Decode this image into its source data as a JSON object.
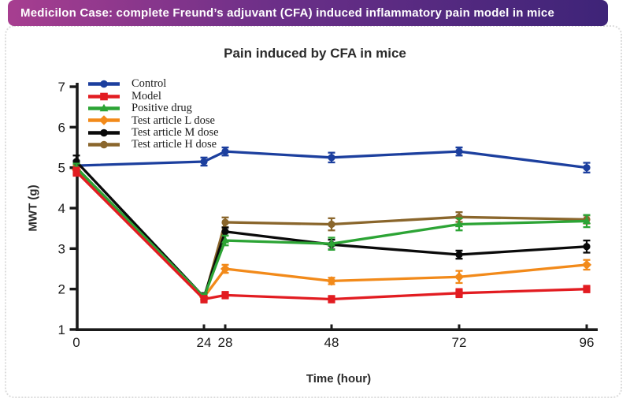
{
  "banner": {
    "text": "Medicilon Case: complete Freund’s adjuvant (CFA) induced inflammatory pain model in mice",
    "gradient_left": "#a73e90",
    "gradient_right": "#3e2478",
    "text_color": "#ffffff"
  },
  "chart_data": {
    "type": "line",
    "title": "Pain induced by CFA in mice",
    "xlabel": "Time (hour)",
    "ylabel": "MWT (g)",
    "x": [
      0,
      24,
      28,
      48,
      72,
      96
    ],
    "x_ticks": [
      "0",
      "24",
      "28",
      "48",
      "72",
      "96"
    ],
    "y_ticks": [
      "1",
      "2",
      "3",
      "4",
      "5",
      "6",
      "7"
    ],
    "xlim": [
      0,
      98
    ],
    "ylim": [
      1,
      7
    ],
    "grid": false,
    "error_bars": true,
    "legend_position": "top-left-inside",
    "axis_color": "#1a1a1a",
    "series": [
      {
        "name": "Control",
        "color": "#1c3f9e",
        "marker": "circle",
        "values": [
          5.05,
          5.15,
          5.4,
          5.25,
          5.4,
          5.0
        ],
        "errors": [
          0.12,
          0.1,
          0.1,
          0.12,
          0.1,
          0.12
        ]
      },
      {
        "name": "Model",
        "color": "#e21c21",
        "marker": "square",
        "values": [
          4.9,
          1.75,
          1.85,
          1.75,
          1.9,
          2.0
        ],
        "errors": [
          0.1,
          0.08,
          0.08,
          0.08,
          0.1,
          0.08
        ]
      },
      {
        "name": "Positive drug",
        "color": "#2ca435",
        "marker": "triangle",
        "values": [
          5.0,
          1.8,
          3.2,
          3.12,
          3.6,
          3.68
        ],
        "errors": [
          0.1,
          0.08,
          0.12,
          0.15,
          0.15,
          0.15
        ]
      },
      {
        "name": "Test article L dose",
        "color": "#f28a1a",
        "marker": "diamond",
        "values": [
          4.95,
          1.8,
          2.5,
          2.2,
          2.3,
          2.6
        ],
        "errors": [
          0.1,
          0.08,
          0.1,
          0.08,
          0.15,
          0.12
        ]
      },
      {
        "name": "Test article M dose",
        "color": "#0a0a0a",
        "marker": "circle",
        "values": [
          5.15,
          1.8,
          3.42,
          3.1,
          2.85,
          3.05
        ],
        "errors": [
          0.15,
          0.1,
          0.1,
          0.12,
          0.1,
          0.15
        ]
      },
      {
        "name": "Test article H dose",
        "color": "#8a662c",
        "marker": "circle",
        "values": [
          5.0,
          1.75,
          3.65,
          3.6,
          3.78,
          3.72
        ],
        "errors": [
          0.1,
          0.08,
          0.12,
          0.15,
          0.12,
          0.1
        ]
      }
    ]
  }
}
